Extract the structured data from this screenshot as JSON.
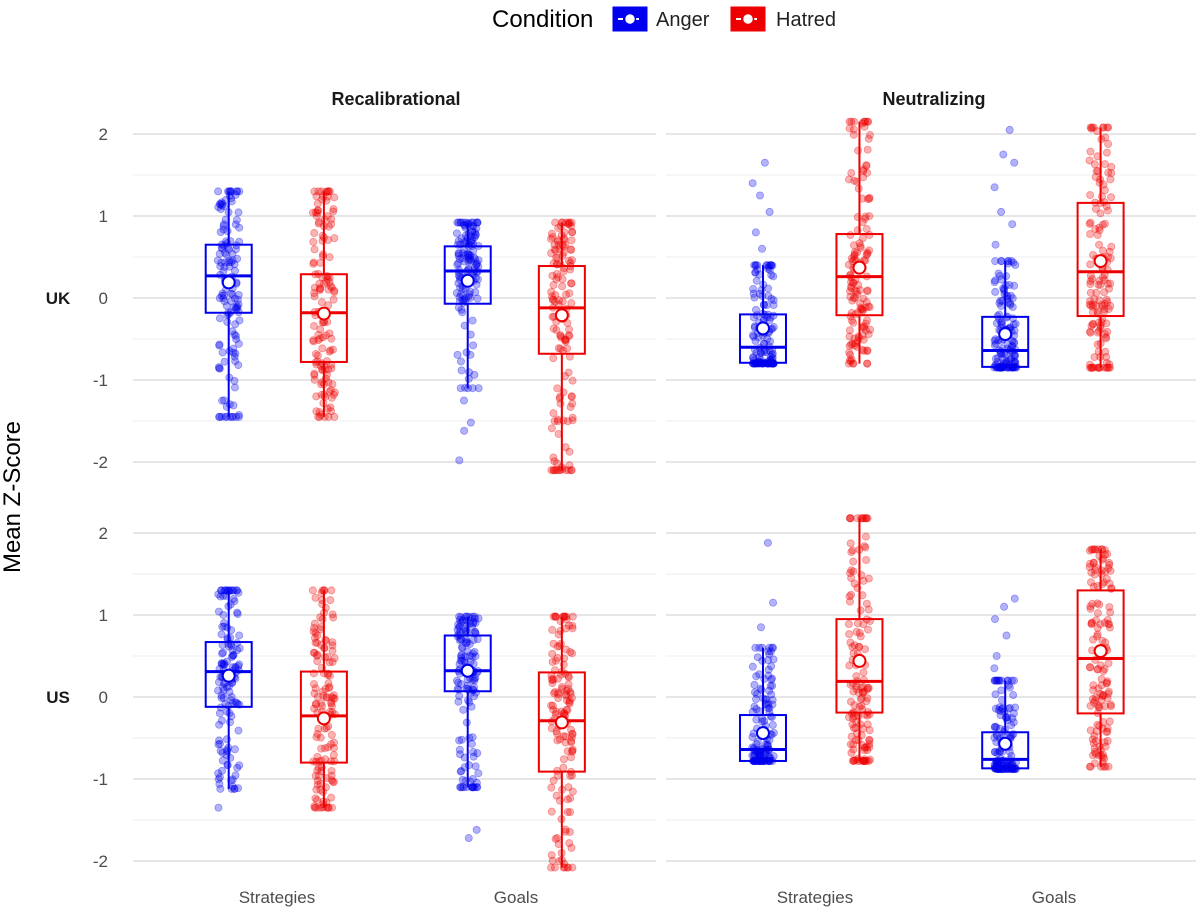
{
  "chart_data": {
    "type": "boxplot",
    "ylabel": "Mean Z-Score",
    "ylim": [
      -2.15,
      2.15
    ],
    "yticks": [
      2,
      1,
      0,
      -1,
      -2
    ],
    "ytick_labels": [
      "2",
      "1",
      "0",
      "-1",
      "-2"
    ],
    "legend": {
      "title": "Condition",
      "position": "top",
      "entries": [
        {
          "name": "Anger",
          "color": "#0000ee"
        },
        {
          "name": "Hatred",
          "color": "#ee0000"
        }
      ]
    },
    "columns": [
      "Recalibrational",
      "Neutralizing"
    ],
    "rows": [
      "UK",
      "US"
    ],
    "categories": [
      "Strategies",
      "Goals"
    ],
    "panels": [
      {
        "row": "UK",
        "column": "Recalibrational",
        "groups": [
          {
            "category": "Strategies",
            "condition": "Anger",
            "whisker_low": -1.45,
            "q1": -0.18,
            "median": 0.27,
            "q3": 0.65,
            "whisker_high": 1.3,
            "mean": 0.19,
            "outliers": []
          },
          {
            "category": "Strategies",
            "condition": "Hatred",
            "whisker_low": -1.45,
            "q1": -0.78,
            "median": -0.18,
            "q3": 0.29,
            "whisker_high": 1.3,
            "mean": -0.19,
            "outliers": []
          },
          {
            "category": "Goals",
            "condition": "Anger",
            "whisker_low": -1.1,
            "q1": -0.07,
            "median": 0.33,
            "q3": 0.63,
            "whisker_high": 0.92,
            "mean": 0.21,
            "outliers": [
              -1.25,
              -1.52,
              -1.62,
              -1.98
            ]
          },
          {
            "category": "Goals",
            "condition": "Hatred",
            "whisker_low": -2.1,
            "q1": -0.68,
            "median": -0.12,
            "q3": 0.39,
            "whisker_high": 0.92,
            "mean": -0.21,
            "outliers": []
          }
        ]
      },
      {
        "row": "UK",
        "column": "Neutralizing",
        "groups": [
          {
            "category": "Strategies",
            "condition": "Anger",
            "whisker_low": -0.8,
            "q1": -0.79,
            "median": -0.6,
            "q3": -0.2,
            "whisker_high": 0.4,
            "mean": -0.37,
            "outliers": [
              0.6,
              0.8,
              1.05,
              1.25,
              1.4,
              1.65
            ]
          },
          {
            "category": "Strategies",
            "condition": "Hatred",
            "whisker_low": -0.8,
            "q1": -0.21,
            "median": 0.26,
            "q3": 0.78,
            "whisker_high": 2.15,
            "mean": 0.37,
            "outliers": []
          },
          {
            "category": "Goals",
            "condition": "Anger",
            "whisker_low": -0.85,
            "q1": -0.84,
            "median": -0.64,
            "q3": -0.23,
            "whisker_high": 0.45,
            "mean": -0.44,
            "outliers": [
              0.65,
              0.9,
              1.05,
              1.35,
              1.65,
              1.75,
              2.05
            ]
          },
          {
            "category": "Goals",
            "condition": "Hatred",
            "whisker_low": -0.85,
            "q1": -0.22,
            "median": 0.32,
            "q3": 1.16,
            "whisker_high": 2.08,
            "mean": 0.45,
            "outliers": []
          }
        ]
      },
      {
        "row": "US",
        "column": "Recalibrational",
        "groups": [
          {
            "category": "Strategies",
            "condition": "Anger",
            "whisker_low": -1.12,
            "q1": -0.12,
            "median": 0.31,
            "q3": 0.67,
            "whisker_high": 1.3,
            "mean": 0.26,
            "outliers": [
              -1.35
            ]
          },
          {
            "category": "Strategies",
            "condition": "Hatred",
            "whisker_low": -1.35,
            "q1": -0.8,
            "median": -0.23,
            "q3": 0.31,
            "whisker_high": 1.3,
            "mean": -0.26,
            "outliers": []
          },
          {
            "category": "Goals",
            "condition": "Anger",
            "whisker_low": -1.1,
            "q1": 0.07,
            "median": 0.32,
            "q3": 0.75,
            "whisker_high": 0.98,
            "mean": 0.32,
            "outliers": [
              -1.62,
              -1.72
            ]
          },
          {
            "category": "Goals",
            "condition": "Hatred",
            "whisker_low": -2.08,
            "q1": -0.91,
            "median": -0.29,
            "q3": 0.3,
            "whisker_high": 0.98,
            "mean": -0.31,
            "outliers": []
          }
        ]
      },
      {
        "row": "US",
        "column": "Neutralizing",
        "groups": [
          {
            "category": "Strategies",
            "condition": "Anger",
            "whisker_low": -0.78,
            "q1": -0.78,
            "median": -0.64,
            "q3": -0.22,
            "whisker_high": 0.6,
            "mean": -0.44,
            "outliers": [
              0.85,
              1.15,
              1.88
            ]
          },
          {
            "category": "Strategies",
            "condition": "Hatred",
            "whisker_low": -0.78,
            "q1": -0.19,
            "median": 0.19,
            "q3": 0.95,
            "whisker_high": 2.18,
            "mean": 0.44,
            "outliers": []
          },
          {
            "category": "Goals",
            "condition": "Anger",
            "whisker_low": -0.88,
            "q1": -0.87,
            "median": -0.76,
            "q3": -0.43,
            "whisker_high": 0.2,
            "mean": -0.57,
            "outliers": [
              0.35,
              0.5,
              0.75,
              0.95,
              1.1,
              1.2
            ]
          },
          {
            "category": "Goals",
            "condition": "Hatred",
            "whisker_low": -0.85,
            "q1": -0.2,
            "median": 0.47,
            "q3": 1.3,
            "whisker_high": 1.8,
            "mean": 0.56,
            "outliers": []
          }
        ]
      }
    ]
  }
}
